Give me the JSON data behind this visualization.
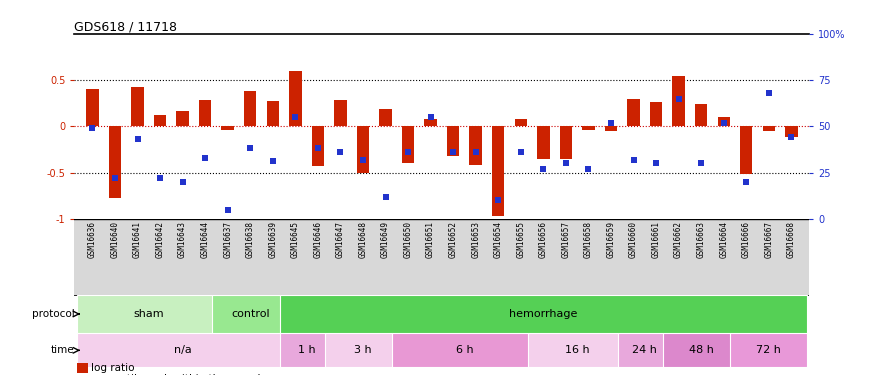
{
  "title": "GDS618 / 11718",
  "samples": [
    "GSM16636",
    "GSM16640",
    "GSM16641",
    "GSM16642",
    "GSM16643",
    "GSM16644",
    "GSM16637",
    "GSM16638",
    "GSM16639",
    "GSM16645",
    "GSM16646",
    "GSM16647",
    "GSM16648",
    "GSM16649",
    "GSM16650",
    "GSM16651",
    "GSM16652",
    "GSM16653",
    "GSM16654",
    "GSM16655",
    "GSM16656",
    "GSM16657",
    "GSM16658",
    "GSM16659",
    "GSM16660",
    "GSM16661",
    "GSM16662",
    "GSM16663",
    "GSM16664",
    "GSM16666",
    "GSM16667",
    "GSM16668"
  ],
  "log_ratio": [
    0.4,
    -0.77,
    0.42,
    0.12,
    0.17,
    0.28,
    -0.04,
    0.38,
    0.27,
    0.6,
    -0.43,
    0.28,
    -0.5,
    0.19,
    -0.4,
    0.08,
    -0.32,
    -0.42,
    -0.97,
    0.08,
    -0.35,
    -0.35,
    -0.04,
    -0.05,
    0.3,
    0.26,
    0.54,
    0.24,
    0.1,
    -0.52,
    -0.05,
    -0.12
  ],
  "pct_rank": [
    0.49,
    0.22,
    0.43,
    0.22,
    0.2,
    0.33,
    0.05,
    0.38,
    0.31,
    0.55,
    0.38,
    0.36,
    0.32,
    0.12,
    0.36,
    0.55,
    0.36,
    0.36,
    0.1,
    0.36,
    0.27,
    0.3,
    0.27,
    0.52,
    0.32,
    0.3,
    0.65,
    0.3,
    0.52,
    0.2,
    0.68,
    0.44
  ],
  "protocol_groups": [
    {
      "label": "sham",
      "start": 0,
      "end": 6,
      "color": "#c8f0c0"
    },
    {
      "label": "control",
      "start": 6,
      "end": 9,
      "color": "#98e890"
    },
    {
      "label": "hemorrhage",
      "start": 9,
      "end": 32,
      "color": "#55d055"
    }
  ],
  "time_groups": [
    {
      "label": "n/a",
      "start": 0,
      "end": 9,
      "color": "#f4d0ec"
    },
    {
      "label": "1 h",
      "start": 9,
      "end": 11,
      "color": "#e8a8dc"
    },
    {
      "label": "3 h",
      "start": 11,
      "end": 14,
      "color": "#f4d0ec"
    },
    {
      "label": "6 h",
      "start": 14,
      "end": 20,
      "color": "#e898d4"
    },
    {
      "label": "16 h",
      "start": 20,
      "end": 24,
      "color": "#f4d0ec"
    },
    {
      "label": "24 h",
      "start": 24,
      "end": 26,
      "color": "#e8a8dc"
    },
    {
      "label": "48 h",
      "start": 26,
      "end": 29,
      "color": "#dc88cc"
    },
    {
      "label": "72 h",
      "start": 29,
      "end": 32,
      "color": "#e898d8"
    }
  ],
  "bar_color": "#cc2200",
  "dot_color": "#2233cc",
  "ylim": [
    -1.0,
    1.0
  ],
  "bg_color": "#ffffff",
  "bar_width": 0.55,
  "dot_size": 16
}
